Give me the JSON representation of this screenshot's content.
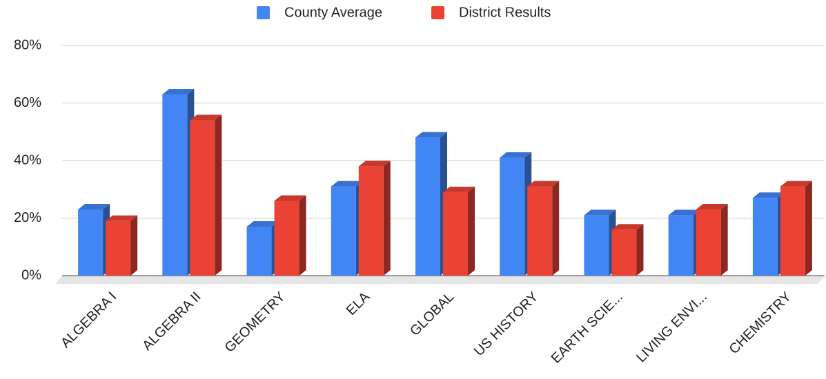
{
  "chart_data": {
    "type": "bar3d",
    "categories": [
      "ALGEBRA I",
      "ALGEBRA II",
      "GEOMETRY",
      "ELA",
      "GLOBAL",
      "US HISTORY",
      "EARTH SCIE...",
      "LIVING ENVI...",
      "CHEMISTRY"
    ],
    "series": [
      {
        "name": "County Average",
        "color": "#4285f4",
        "values": [
          23,
          63,
          17,
          31,
          48,
          41,
          21,
          21,
          27
        ]
      },
      {
        "name": "District Results",
        "color": "#ea4335",
        "values": [
          19,
          54,
          26,
          38,
          29,
          31,
          16,
          23,
          31
        ]
      }
    ],
    "ylim": [
      0,
      80
    ],
    "yticks": [
      {
        "value": 0,
        "label": "0%"
      },
      {
        "value": 20,
        "label": "20%"
      },
      {
        "value": 40,
        "label": "40%"
      },
      {
        "value": 60,
        "label": "60%"
      },
      {
        "value": 80,
        "label": "80%"
      }
    ],
    "grid": true,
    "legend": "top"
  }
}
